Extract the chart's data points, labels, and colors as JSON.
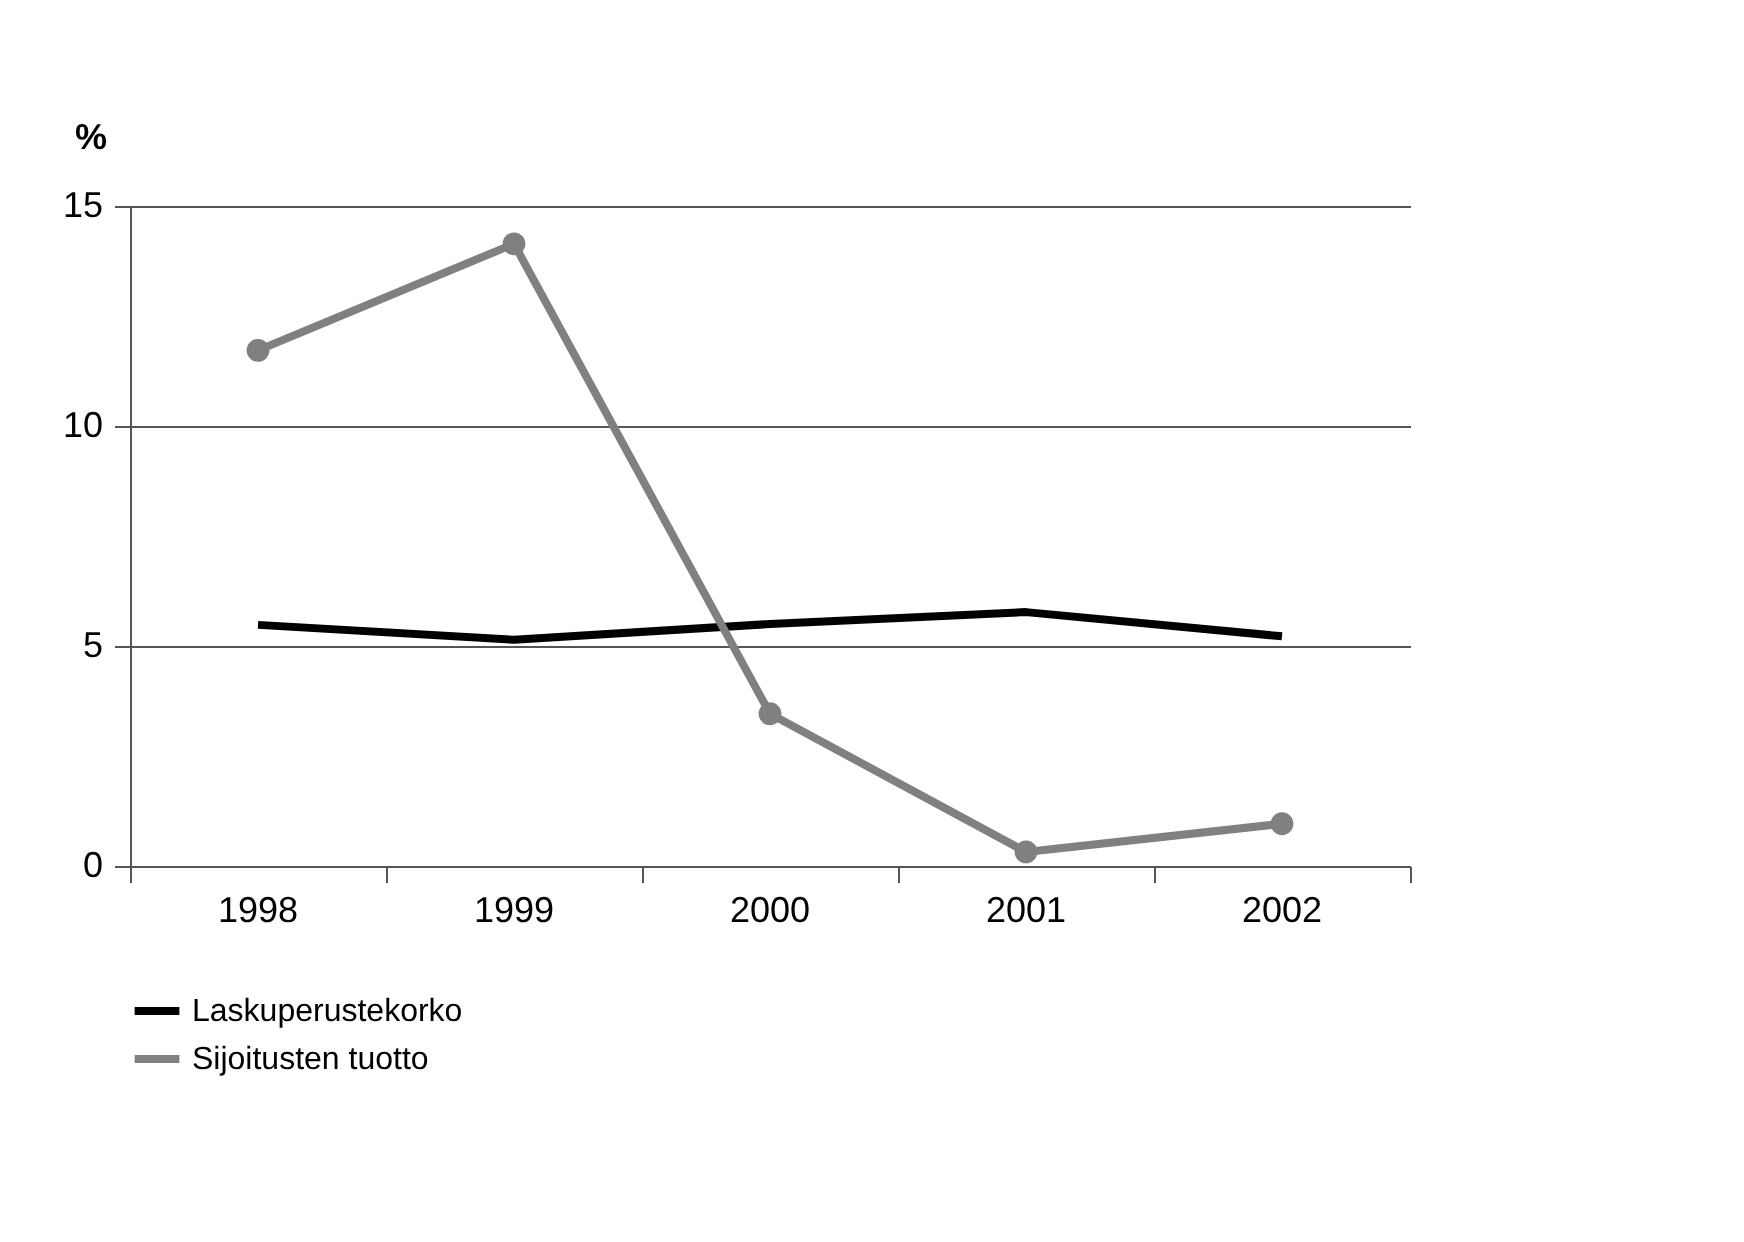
{
  "chart_data": {
    "type": "line",
    "ylabel": "%",
    "categories": [
      "1998",
      "1999",
      "2000",
      "2001",
      "2002"
    ],
    "series": [
      {
        "name": "Laskuperustekorko",
        "color": "#000000",
        "values": [
          5.48,
          5.14,
          5.5,
          5.77,
          5.22
        ],
        "marker": "none"
      },
      {
        "name": "Sijoitusten tuotto",
        "color": "#808080",
        "values": [
          11.72,
          14.14,
          3.46,
          0.32,
          0.96
        ],
        "marker": "circle"
      }
    ],
    "ylim": [
      0,
      15
    ],
    "yticks": [
      0,
      5,
      10,
      15
    ],
    "grid": "y",
    "legend": "bottom"
  }
}
